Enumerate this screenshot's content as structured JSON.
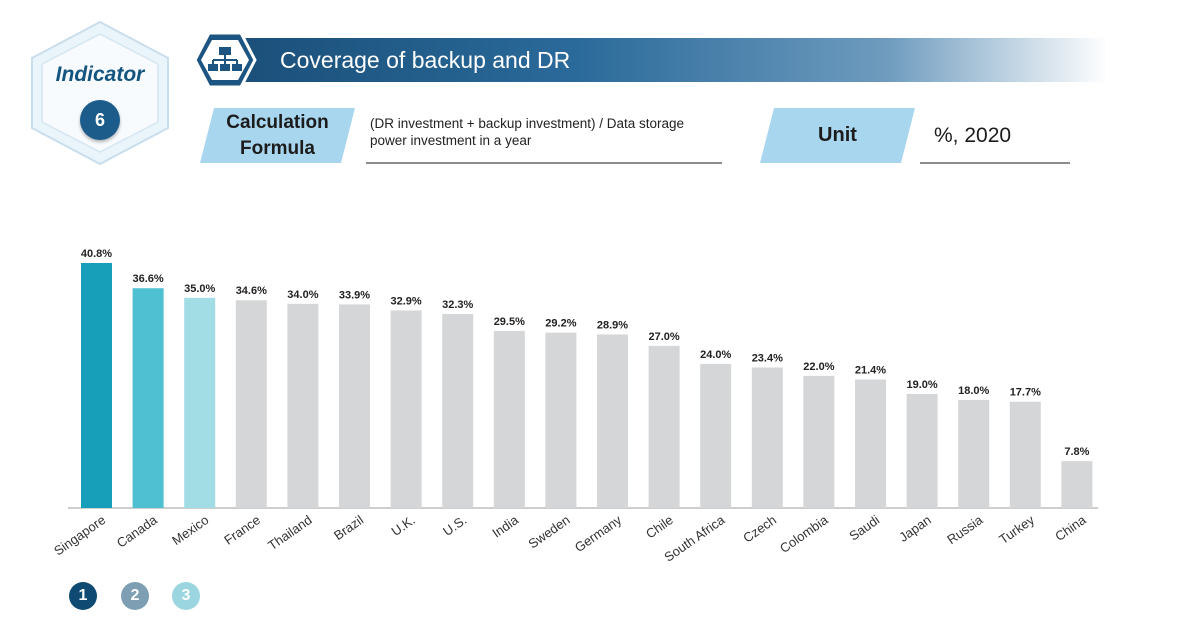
{
  "indicator": {
    "label": "Indicator",
    "number": "6"
  },
  "header": {
    "title": "Coverage of backup and DR",
    "icon": "server-network-icon"
  },
  "formula": {
    "label_line1": "Calculation",
    "label_line2": "Formula",
    "text": "(DR investment + backup investment) / Data storage power investment in a year"
  },
  "unit": {
    "label": "Unit",
    "value": "%, 2020"
  },
  "colors": {
    "top1": "#179fba",
    "top2": "#4ec0d2",
    "top3": "#a2dce5",
    "other": "#d4d6d7",
    "rank1": "#0f4a72",
    "rank2": "#7e9fb3",
    "rank3": "#9bd5df"
  },
  "ranks": [
    "1",
    "2",
    "3"
  ],
  "chart_data": {
    "type": "bar",
    "categories": [
      "Singapore",
      "Canada",
      "Mexico",
      "France",
      "Thailand",
      "Brazil",
      "U.K.",
      "U.S.",
      "India",
      "Sweden",
      "Germany",
      "Chile",
      "South Africa",
      "Czech",
      "Colombia",
      "Saudi",
      "Japan",
      "Russia",
      "Turkey",
      "China"
    ],
    "values": [
      40.8,
      36.6,
      35.0,
      34.6,
      34.0,
      33.9,
      32.9,
      32.3,
      29.5,
      29.2,
      28.9,
      27.0,
      24.0,
      23.4,
      22.0,
      21.4,
      19.0,
      18.0,
      17.7,
      7.8
    ],
    "data_labels": [
      "40.8%",
      "36.6%",
      "35.0%",
      "34.6%",
      "34.0%",
      "33.9%",
      "32.9%",
      "32.3%",
      "29.5%",
      "29.2%",
      "28.9%",
      "27.0%",
      "24.0%",
      "23.4%",
      "22.0%",
      "21.4%",
      "19.0%",
      "18.0%",
      "17.7%",
      "7.8%"
    ],
    "ylim": [
      0,
      45
    ],
    "grid": false
  }
}
